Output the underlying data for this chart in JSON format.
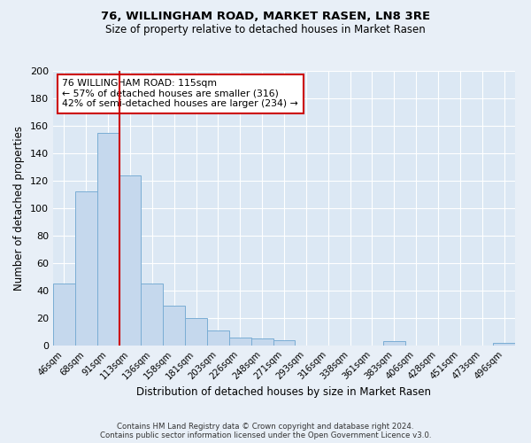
{
  "title": "76, WILLINGHAM ROAD, MARKET RASEN, LN8 3RE",
  "subtitle": "Size of property relative to detached houses in Market Rasen",
  "xlabel": "Distribution of detached houses by size in Market Rasen",
  "ylabel": "Number of detached properties",
  "bin_labels": [
    "46sqm",
    "68sqm",
    "91sqm",
    "113sqm",
    "136sqm",
    "158sqm",
    "181sqm",
    "203sqm",
    "226sqm",
    "248sqm",
    "271sqm",
    "293sqm",
    "316sqm",
    "338sqm",
    "361sqm",
    "383sqm",
    "406sqm",
    "428sqm",
    "451sqm",
    "473sqm",
    "496sqm"
  ],
  "bar_values": [
    45,
    112,
    155,
    124,
    45,
    29,
    20,
    11,
    6,
    5,
    4,
    0,
    0,
    0,
    0,
    3,
    0,
    0,
    0,
    0,
    2
  ],
  "bar_color": "#c5d8ed",
  "bar_edgecolor": "#7aadd4",
  "vline_x": 2.5,
  "vline_color": "#cc0000",
  "ylim": [
    0,
    200
  ],
  "yticks": [
    0,
    20,
    40,
    60,
    80,
    100,
    120,
    140,
    160,
    180,
    200
  ],
  "annotation_title": "76 WILLINGHAM ROAD: 115sqm",
  "annotation_line1": "← 57% of detached houses are smaller (316)",
  "annotation_line2": "42% of semi-detached houses are larger (234) →",
  "annotation_box_facecolor": "#ffffff",
  "annotation_box_edgecolor": "#cc0000",
  "footer_line1": "Contains HM Land Registry data © Crown copyright and database right 2024.",
  "footer_line2": "Contains public sector information licensed under the Open Government Licence v3.0.",
  "bg_color": "#e8eff7",
  "plot_bg_color": "#dce8f4"
}
